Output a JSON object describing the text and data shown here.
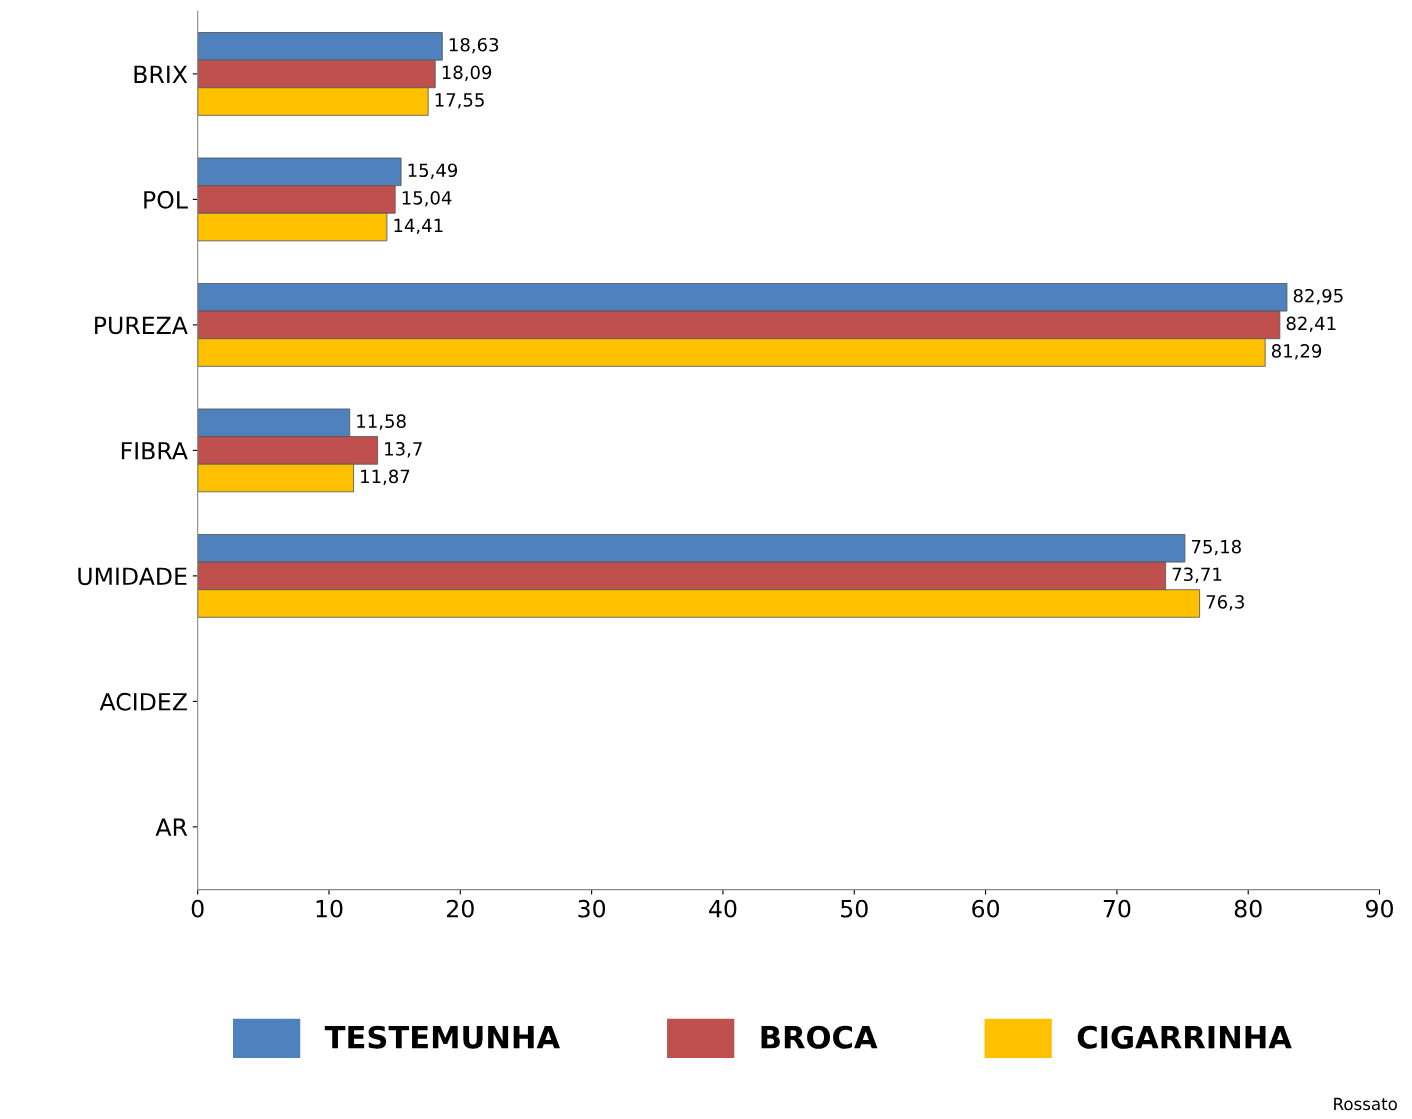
{
  "chart_data": {
    "type": "bar",
    "orientation": "horizontal",
    "categories": [
      "BRIX",
      "POL",
      "PUREZA",
      "FIBRA",
      "UMIDADE",
      "ACIDEZ",
      "AR"
    ],
    "series": [
      {
        "name": "TESTEMUNHA",
        "color": "#4f81bd",
        "values": [
          18.63,
          15.49,
          82.95,
          11.58,
          75.18,
          null,
          null
        ],
        "value_labels": [
          "18,63",
          "15,49",
          "82,95",
          "11,58",
          "75,18",
          null,
          null
        ]
      },
      {
        "name": "BROCA",
        "color": "#c0504d",
        "values": [
          18.09,
          15.04,
          82.41,
          13.7,
          73.71,
          null,
          null
        ],
        "value_labels": [
          "18,09",
          "15,04",
          "82,41",
          "13,7",
          "73,71",
          null,
          null
        ]
      },
      {
        "name": "CIGARRINHA",
        "color": "#ffc000",
        "values": [
          17.55,
          14.41,
          81.29,
          11.87,
          76.3,
          null,
          null
        ],
        "value_labels": [
          "17,55",
          "14,41",
          "81,29",
          "11,87",
          "76,3",
          null,
          null
        ]
      }
    ],
    "xlim": [
      0,
      90
    ],
    "xticks": [
      0,
      10,
      20,
      30,
      40,
      50,
      60,
      70,
      80,
      90
    ],
    "grid": false,
    "legend": "bottom",
    "annotations": [
      "Rossato"
    ]
  }
}
